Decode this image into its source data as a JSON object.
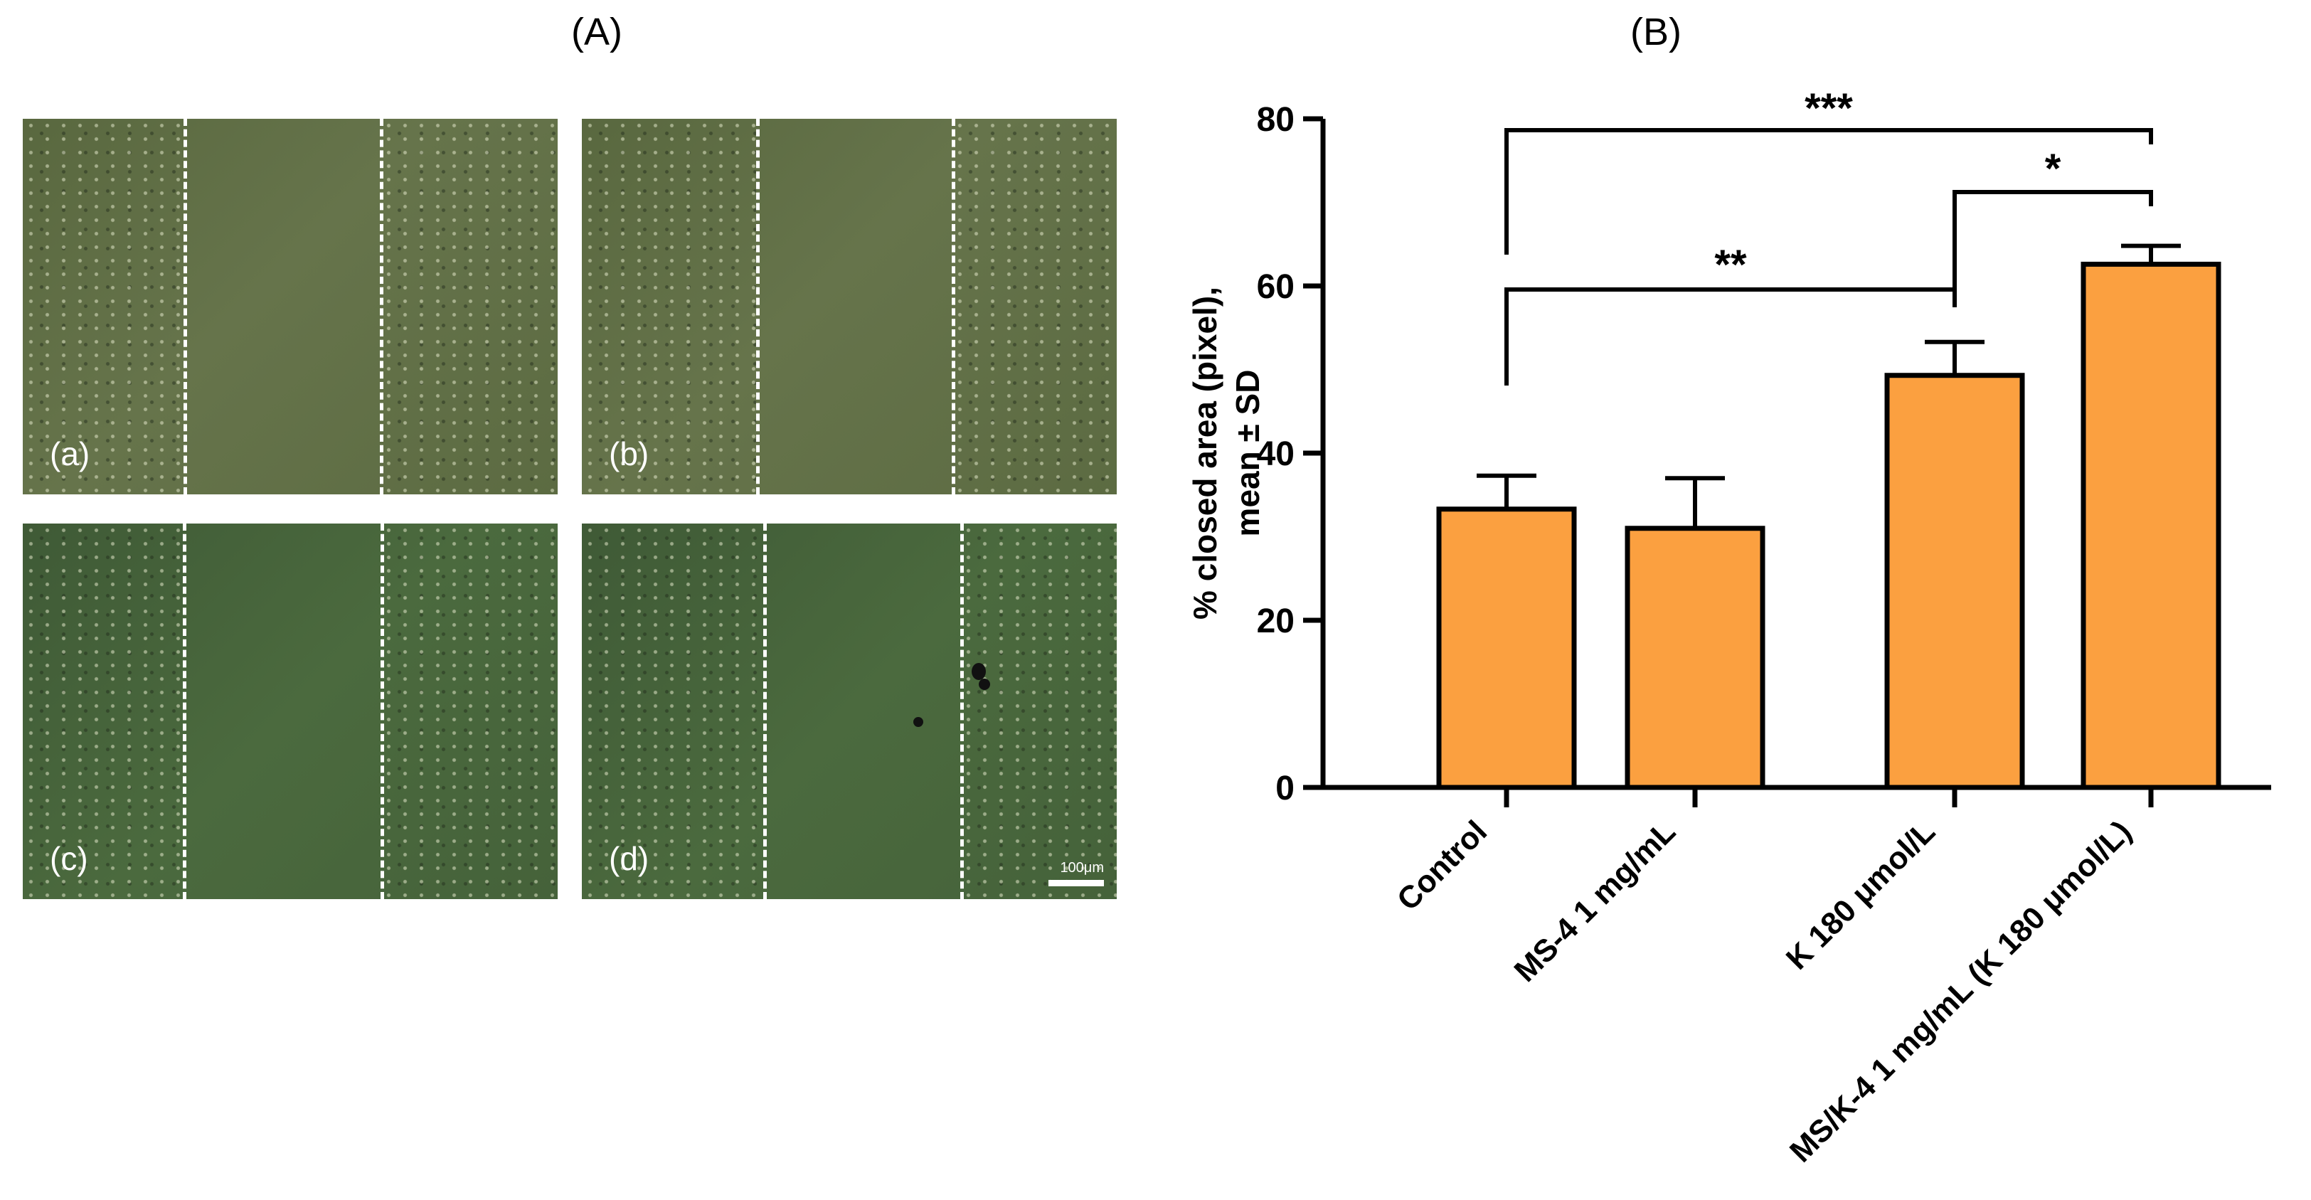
{
  "panel_a": {
    "title": "(A)",
    "images": [
      {
        "label": "(a)"
      },
      {
        "label": "(b)"
      },
      {
        "label": "(c)"
      },
      {
        "label": "(d)",
        "scale_bar": "100μm"
      }
    ]
  },
  "panel_b": {
    "title": "(B)"
  },
  "chart_data": {
    "type": "bar",
    "categories": [
      "Control",
      "MS-4 1 mg/mL",
      "K 180 μmol/L",
      "MS/K-4 1 mg/mL (K 180 μmol/L)"
    ],
    "values": [
      33.3,
      31.0,
      49.3,
      62.6
    ],
    "errors": [
      4.0,
      6.0,
      4.0,
      2.2
    ],
    "ylabel_line1": "% closed area (pixel),",
    "ylabel_line2": "mean ± SD",
    "ylim": [
      0,
      80
    ],
    "yticks": [
      "0",
      "20",
      "40",
      "60",
      "80"
    ],
    "bar_color": "#fba040",
    "significance": [
      {
        "from": 0,
        "to": 3,
        "label": "***"
      },
      {
        "from": 2,
        "to": 3,
        "label": "*"
      },
      {
        "from": 0,
        "to": 2,
        "label": "**"
      }
    ]
  }
}
